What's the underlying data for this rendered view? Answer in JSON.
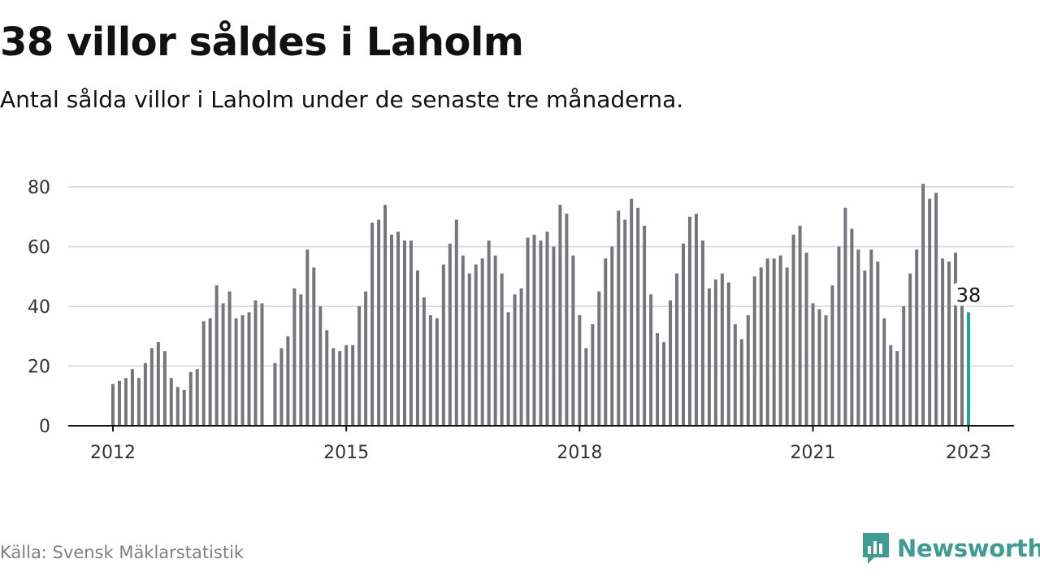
{
  "title": "38 villor såldes i Laholm",
  "subtitle": "Antal sålda villor i Laholm under de senaste tre månaderna.",
  "source": "Källa: Svensk Mäklarstatistik",
  "brand": {
    "name": "Newsworthy",
    "icon": "newsworthy-logo-icon",
    "color": "#3f9b94"
  },
  "chart_data": {
    "type": "bar",
    "title": "38 villor såldes i Laholm",
    "subtitle": "Antal sålda villor i Laholm under de senaste tre månaderna.",
    "xlabel": "",
    "ylabel": "",
    "ylim": [
      0,
      80
    ],
    "yticks": [
      0,
      20,
      40,
      60,
      80
    ],
    "xticks": [
      "2012",
      "2015",
      "2018",
      "2021",
      "2023"
    ],
    "x_start": "2012-01",
    "x_end": "2023-01",
    "grid": true,
    "bar_color": "#76757b",
    "highlight_color": "#1fa39a",
    "highlight_label": "38",
    "values": [
      14,
      15,
      16,
      19,
      16,
      21,
      26,
      28,
      25,
      16,
      13,
      12,
      18,
      19,
      35,
      36,
      47,
      41,
      45,
      36,
      37,
      38,
      42,
      41,
      null,
      21,
      26,
      30,
      46,
      44,
      59,
      53,
      40,
      32,
      26,
      25,
      27,
      27,
      40,
      45,
      68,
      69,
      74,
      64,
      65,
      62,
      62,
      52,
      43,
      37,
      36,
      54,
      61,
      69,
      57,
      51,
      54,
      56,
      62,
      57,
      51,
      38,
      44,
      46,
      63,
      64,
      62,
      65,
      60,
      74,
      71,
      57,
      37,
      26,
      34,
      45,
      56,
      60,
      72,
      69,
      76,
      73,
      67,
      44,
      31,
      28,
      42,
      51,
      61,
      70,
      71,
      62,
      46,
      49,
      51,
      48,
      34,
      29,
      37,
      50,
      53,
      56,
      56,
      57,
      53,
      64,
      67,
      58,
      41,
      39,
      37,
      47,
      60,
      73,
      66,
      59,
      52,
      59,
      55,
      36,
      27,
      25,
      40,
      51,
      59,
      81,
      76,
      78,
      56,
      55,
      58,
      41,
      38
    ]
  }
}
